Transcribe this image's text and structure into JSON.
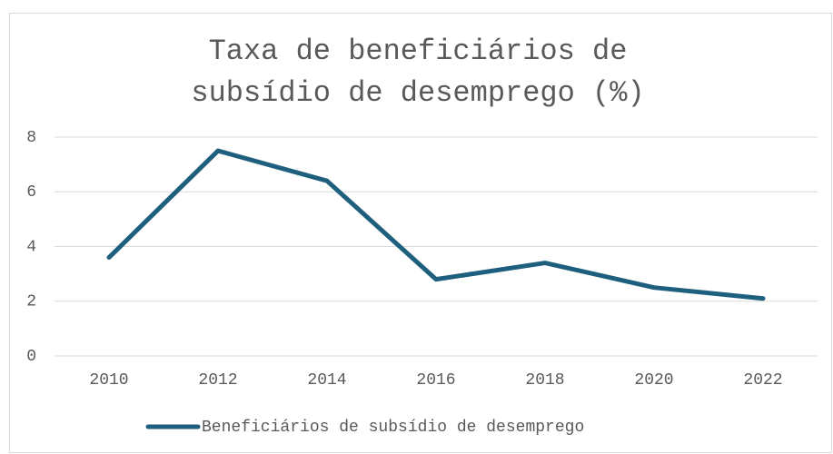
{
  "chart_data": {
    "type": "line",
    "title": "Taxa de beneficiários de subsídio de desemprego (%)",
    "categories": [
      "2010",
      "2012",
      "2014",
      "2016",
      "2018",
      "2020",
      "2022"
    ],
    "series": [
      {
        "name": "Beneficiários de subsídio de desemprego",
        "color": "#1f5f7e",
        "values": [
          3.6,
          7.5,
          6.4,
          2.8,
          3.4,
          2.5,
          2.1
        ]
      }
    ],
    "ylim": [
      0,
      8
    ],
    "yticks": [
      0,
      2,
      4,
      6,
      8
    ],
    "grid": true,
    "legend": "bottom"
  }
}
